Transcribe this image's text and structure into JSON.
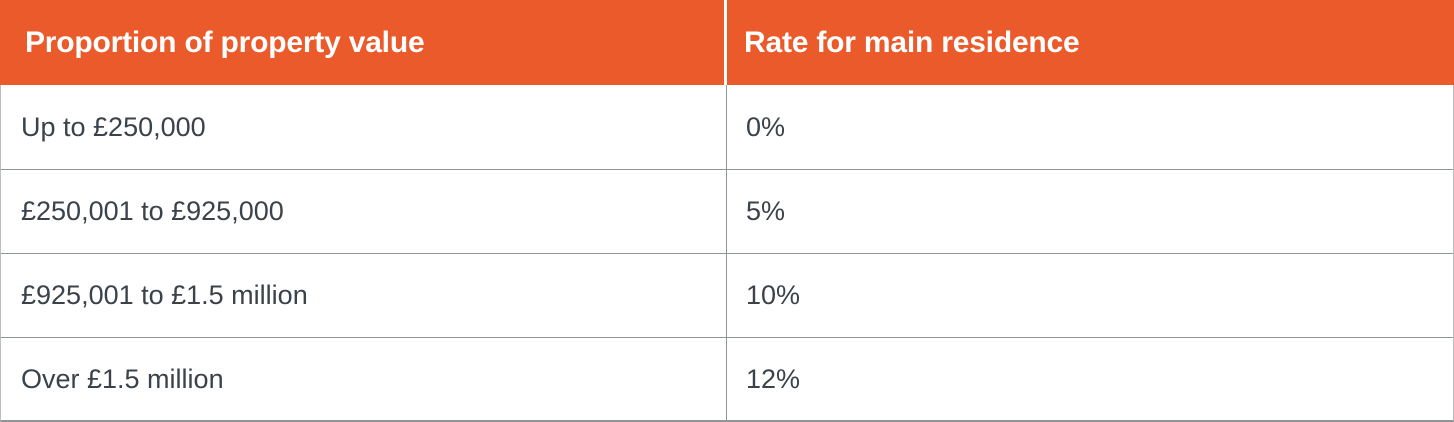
{
  "chart_data": {
    "type": "table",
    "title": "",
    "columns": [
      "Proportion of property value",
      "Rate for main residence"
    ],
    "rows": [
      [
        "Up to £250,000",
        "0%"
      ],
      [
        "£250,001 to £925,000",
        "5%"
      ],
      [
        "£925,001 to £1.5 million",
        "10%"
      ],
      [
        "Over £1.5 million",
        "12%"
      ]
    ],
    "bands": [
      {
        "from": 0,
        "to": 250000,
        "rate_percent": 0
      },
      {
        "from": 250001,
        "to": 925000,
        "rate_percent": 5
      },
      {
        "from": 925001,
        "to": 1500000,
        "rate_percent": 10
      },
      {
        "from": 1500000,
        "to": null,
        "rate_percent": 12
      }
    ],
    "legend_position": "none",
    "grid": "row and column dividers"
  },
  "theme": {
    "header_bg": "#EA5A2B",
    "header_text": "#FFFFFF",
    "header_divider": "#FFFFFF",
    "body_bg": "#FFFFFF",
    "body_text": "#3B4249",
    "divider": "#8F9496",
    "outer_border": "#B9BDC0"
  }
}
